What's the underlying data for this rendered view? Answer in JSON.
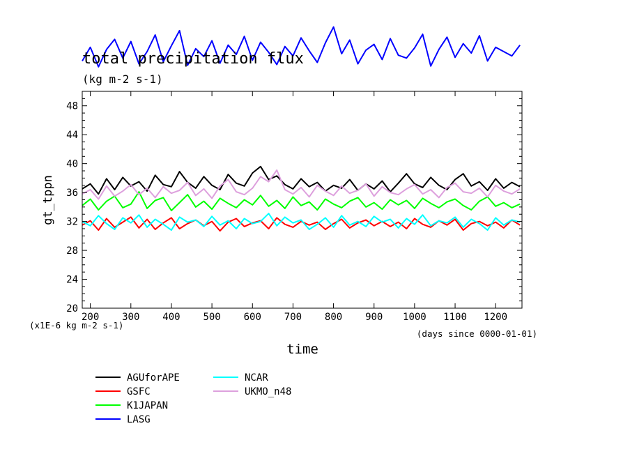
{
  "chart_data": {
    "type": "line",
    "title": "total precipitation flux",
    "units_label": "(kg m-2 s-1)",
    "right_corner_label": "",
    "ylabel": "gt_tppn",
    "xlabel": "time",
    "y_multiplier_label": "(x1E-6 kg m-2 s-1)",
    "x_units_label": "(days since 0000-01-01)",
    "xlim": [
      180,
      1265
    ],
    "ylim": [
      20,
      50
    ],
    "x_ticks": [
      "200",
      "300",
      "400",
      "500",
      "600",
      "700",
      "800",
      "900",
      "1000",
      "1100",
      "1200"
    ],
    "y_ticks": [
      "20",
      "24",
      "28",
      "32",
      "36",
      "40",
      "44",
      "48"
    ],
    "grid": false,
    "legend_position": "bottom-left",
    "x": [
      180,
      200,
      220,
      240,
      260,
      280,
      300,
      320,
      340,
      360,
      380,
      400,
      420,
      440,
      460,
      480,
      500,
      520,
      540,
      560,
      580,
      600,
      620,
      640,
      660,
      680,
      700,
      720,
      740,
      760,
      780,
      800,
      820,
      840,
      860,
      880,
      900,
      920,
      940,
      960,
      980,
      1000,
      1020,
      1040,
      1060,
      1080,
      1100,
      1120,
      1140,
      1160,
      1180,
      1200,
      1220,
      1240,
      1260
    ],
    "series": [
      {
        "name": "AGUforAPE",
        "color": "#000000",
        "values": [
          36.5,
          37.2,
          35.8,
          37.9,
          36.4,
          38.1,
          36.9,
          37.5,
          36.2,
          38.4,
          37.1,
          36.8,
          38.9,
          37.4,
          36.6,
          38.2,
          37.0,
          36.4,
          38.5,
          37.3,
          36.9,
          38.7,
          39.6,
          37.8,
          38.3,
          37.1,
          36.5,
          37.9,
          36.8,
          37.4,
          36.2,
          37.0,
          36.6,
          37.8,
          36.3,
          37.2,
          36.5,
          37.6,
          36.1,
          37.3,
          38.6,
          37.2,
          36.7,
          38.1,
          37.0,
          36.4,
          37.8,
          38.6,
          36.9,
          37.5,
          36.3,
          37.9,
          36.6,
          37.4,
          36.8
        ]
      },
      {
        "name": "GSFC",
        "color": "#ff0000",
        "values": [
          31.5,
          32.1,
          30.8,
          32.4,
          31.2,
          31.9,
          32.6,
          31.1,
          32.3,
          30.9,
          31.8,
          32.5,
          31.0,
          31.7,
          32.2,
          31.4,
          32.0,
          30.7,
          31.9,
          32.4,
          31.3,
          31.8,
          32.1,
          31.0,
          32.5,
          31.6,
          31.2,
          32.0,
          31.5,
          31.9,
          30.9,
          31.7,
          32.3,
          31.1,
          31.8,
          32.2,
          31.4,
          32.0,
          31.3,
          31.9,
          31.0,
          32.4,
          31.6,
          31.2,
          32.1,
          31.5,
          32.3,
          30.8,
          31.7,
          32.0,
          31.4,
          31.9,
          31.1,
          32.2,
          31.5
        ]
      },
      {
        "name": "K1JAPAN",
        "color": "#00ff00",
        "values": [
          34.2,
          35.1,
          33.6,
          34.8,
          35.5,
          33.9,
          34.4,
          36.1,
          33.8,
          34.9,
          35.3,
          33.5,
          34.6,
          35.7,
          34.0,
          34.8,
          33.7,
          35.2,
          34.5,
          33.9,
          35.0,
          34.3,
          35.6,
          34.1,
          34.9,
          33.8,
          35.4,
          34.2,
          34.7,
          33.6,
          35.1,
          34.4,
          33.9,
          34.8,
          35.3,
          34.0,
          34.6,
          33.7,
          35.0,
          34.3,
          34.9,
          33.8,
          35.2,
          34.5,
          33.9,
          34.7,
          35.1,
          34.2,
          33.6,
          34.8,
          35.4,
          34.1,
          34.6,
          33.9,
          34.4
        ]
      },
      {
        "name": "LASG",
        "color": "#0000ff",
        "values": [
          54.2,
          56.1,
          53.4,
          55.8,
          57.2,
          54.6,
          56.9,
          53.8,
          55.5,
          57.8,
          54.1,
          56.3,
          58.4,
          53.6,
          55.9,
          54.8,
          57.0,
          53.9,
          56.4,
          55.1,
          57.6,
          54.3,
          56.8,
          55.4,
          53.7,
          56.2,
          54.9,
          57.4,
          55.6,
          54.0,
          56.7,
          58.9,
          55.2,
          57.1,
          53.8,
          55.7,
          56.5,
          54.4,
          57.3,
          55.0,
          54.6,
          56.0,
          57.9,
          53.5,
          55.8,
          57.5,
          54.7,
          56.6,
          55.3,
          57.7,
          54.2,
          56.1,
          55.5,
          54.9,
          56.4
        ]
      },
      {
        "name": "NCAR",
        "color": "#00ffff",
        "values": [
          32.0,
          31.4,
          32.8,
          31.7,
          30.9,
          32.5,
          31.8,
          32.9,
          31.2,
          32.3,
          31.6,
          30.8,
          32.6,
          31.9,
          32.2,
          31.3,
          32.7,
          31.5,
          32.1,
          31.0,
          32.4,
          31.7,
          32.0,
          33.1,
          31.4,
          32.6,
          31.8,
          32.2,
          30.9,
          31.6,
          32.5,
          31.2,
          32.8,
          31.5,
          32.0,
          31.3,
          32.7,
          31.9,
          32.3,
          31.1,
          32.4,
          31.6,
          32.9,
          31.4,
          32.1,
          31.8,
          32.6,
          31.2,
          32.3,
          31.7,
          30.8,
          32.5,
          31.5,
          32.2,
          31.9
        ]
      },
      {
        "name": "UKMO_n48",
        "color": "#dda0dd",
        "values": [
          35.8,
          36.4,
          35.1,
          36.9,
          35.5,
          36.2,
          37.1,
          35.7,
          36.6,
          35.3,
          36.8,
          35.9,
          36.3,
          37.4,
          35.6,
          36.5,
          35.2,
          36.9,
          37.8,
          36.1,
          35.7,
          36.6,
          38.2,
          37.5,
          39.1,
          36.4,
          35.8,
          36.7,
          35.4,
          37.0,
          36.2,
          35.6,
          36.9,
          35.9,
          36.3,
          37.2,
          35.5,
          36.8,
          36.0,
          35.7,
          36.5,
          37.1,
          35.8,
          36.4,
          35.3,
          36.7,
          37.3,
          36.1,
          35.9,
          36.6,
          35.4,
          37.0,
          36.2,
          35.8,
          36.5
        ]
      }
    ]
  }
}
